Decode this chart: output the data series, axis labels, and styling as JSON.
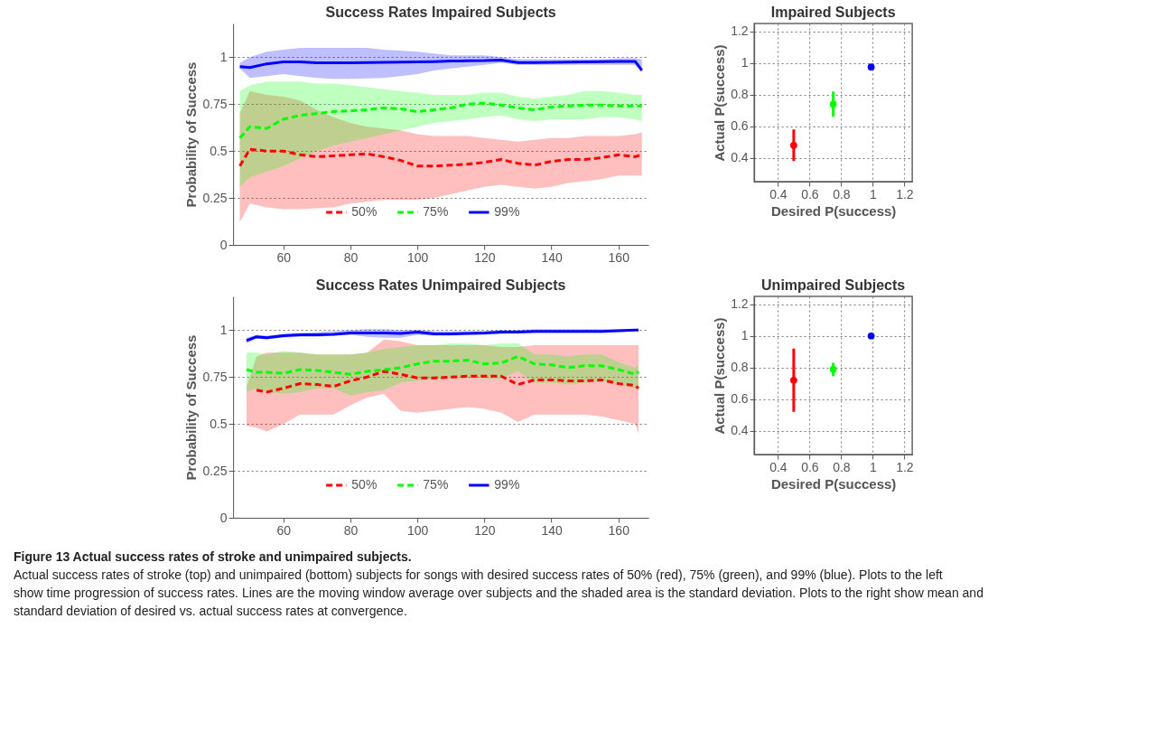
{
  "chart_data": [
    {
      "type": "line",
      "title": "Success Rates Impaired Subjects",
      "ylabel": "Probability of Success",
      "xlim": [
        45,
        169
      ],
      "ylim": [
        0,
        1.18
      ],
      "xticks": [
        60,
        80,
        100,
        120,
        140,
        160
      ],
      "yticks": [
        0,
        0.25,
        0.5,
        0.75,
        1
      ],
      "grid": "y",
      "legend": "bottom",
      "x": [
        47,
        50,
        55,
        60,
        65,
        70,
        75,
        80,
        85,
        90,
        95,
        100,
        105,
        110,
        115,
        120,
        125,
        130,
        135,
        140,
        145,
        150,
        155,
        160,
        165,
        167
      ],
      "series": [
        {
          "name": "50%",
          "color": "#ff0000",
          "line_style": "dashed",
          "values": [
            0.42,
            0.51,
            0.5,
            0.5,
            0.48,
            0.47,
            0.475,
            0.48,
            0.485,
            0.47,
            0.45,
            0.42,
            0.42,
            0.425,
            0.43,
            0.44,
            0.455,
            0.435,
            0.425,
            0.445,
            0.455,
            0.455,
            0.465,
            0.48,
            0.47,
            0.48
          ],
          "lower": [
            0.12,
            0.22,
            0.2,
            0.19,
            0.19,
            0.195,
            0.2,
            0.22,
            0.23,
            0.24,
            0.24,
            0.24,
            0.25,
            0.27,
            0.29,
            0.31,
            0.32,
            0.31,
            0.3,
            0.31,
            0.33,
            0.34,
            0.35,
            0.37,
            0.37,
            0.37
          ],
          "upper": [
            0.7,
            0.82,
            0.8,
            0.79,
            0.77,
            0.72,
            0.68,
            0.65,
            0.63,
            0.62,
            0.61,
            0.59,
            0.58,
            0.58,
            0.58,
            0.57,
            0.56,
            0.55,
            0.56,
            0.57,
            0.57,
            0.58,
            0.58,
            0.58,
            0.59,
            0.6
          ]
        },
        {
          "name": "75%",
          "color": "#00ff00",
          "line_style": "dashed",
          "values": [
            0.57,
            0.63,
            0.62,
            0.67,
            0.69,
            0.7,
            0.71,
            0.715,
            0.72,
            0.73,
            0.725,
            0.71,
            0.72,
            0.73,
            0.75,
            0.755,
            0.745,
            0.73,
            0.72,
            0.735,
            0.74,
            0.745,
            0.745,
            0.74,
            0.74,
            0.74
          ],
          "lower": [
            0.31,
            0.36,
            0.39,
            0.42,
            0.46,
            0.5,
            0.53,
            0.55,
            0.57,
            0.59,
            0.61,
            0.63,
            0.65,
            0.66,
            0.67,
            0.68,
            0.69,
            0.67,
            0.66,
            0.67,
            0.67,
            0.67,
            0.68,
            0.68,
            0.67,
            0.66
          ],
          "upper": [
            0.82,
            0.85,
            0.87,
            0.87,
            0.87,
            0.86,
            0.86,
            0.85,
            0.84,
            0.83,
            0.82,
            0.81,
            0.8,
            0.8,
            0.8,
            0.81,
            0.81,
            0.79,
            0.78,
            0.79,
            0.8,
            0.82,
            0.82,
            0.81,
            0.8,
            0.8
          ]
        },
        {
          "name": "99%",
          "color": "#0000ff",
          "line_style": "solid",
          "values": [
            0.95,
            0.945,
            0.965,
            0.975,
            0.975,
            0.97,
            0.97,
            0.97,
            0.972,
            0.973,
            0.974,
            0.975,
            0.977,
            0.98,
            0.981,
            0.982,
            0.985,
            0.972,
            0.972,
            0.973,
            0.974,
            0.975,
            0.976,
            0.978,
            0.978,
            0.93
          ],
          "lower": [
            0.94,
            0.89,
            0.9,
            0.91,
            0.9,
            0.89,
            0.885,
            0.885,
            0.887,
            0.89,
            0.9,
            0.91,
            0.93,
            0.94,
            0.95,
            0.96,
            0.97,
            0.96,
            0.96,
            0.96,
            0.96,
            0.96,
            0.96,
            0.96,
            0.96,
            0.92
          ],
          "upper": [
            0.97,
            1.0,
            1.03,
            1.04,
            1.05,
            1.05,
            1.05,
            1.05,
            1.05,
            1.04,
            1.035,
            1.03,
            1.02,
            1.01,
            1.01,
            1.01,
            1.0,
            0.99,
            0.99,
            0.99,
            0.99,
            0.99,
            0.99,
            0.995,
            0.995,
            0.99
          ]
        }
      ]
    },
    {
      "type": "scatter",
      "title": "Impaired Subjects",
      "xlabel": "Desired P(success)",
      "ylabel": "Actual P(success)",
      "xlim": [
        0.25,
        1.25
      ],
      "ylim": [
        0.25,
        1.25
      ],
      "xticks": [
        0.4,
        0.6,
        0.8,
        1,
        1.2
      ],
      "yticks": [
        0.4,
        0.6,
        0.8,
        1,
        1.2
      ],
      "grid": true,
      "marker": "circle",
      "series": [
        {
          "color": "#ff0000",
          "x": [
            0.5
          ],
          "values": [
            0.48
          ],
          "errors": [
            [
              0.38,
              0.58
            ]
          ]
        },
        {
          "color": "#00ff00",
          "x": [
            0.75
          ],
          "values": [
            0.74
          ],
          "errors": [
            [
              0.66,
              0.82
            ]
          ]
        },
        {
          "color": "#0000ff",
          "x": [
            0.99
          ],
          "values": [
            0.975
          ],
          "errors": [
            [
              0.96,
              0.99
            ]
          ]
        }
      ]
    },
    {
      "type": "line",
      "title": "Success Rates Unimpaired Subjects",
      "ylabel": "Probability of Success",
      "xlim": [
        45,
        169
      ],
      "ylim": [
        0,
        1.18
      ],
      "xticks": [
        60,
        80,
        100,
        120,
        140,
        160
      ],
      "yticks": [
        0,
        0.25,
        0.5,
        0.75,
        1
      ],
      "grid": "y",
      "legend": "bottom",
      "x": [
        49,
        52,
        55,
        60,
        65,
        70,
        75,
        80,
        85,
        90,
        95,
        100,
        105,
        110,
        115,
        120,
        125,
        130,
        135,
        140,
        145,
        150,
        155,
        160,
        165,
        166
      ],
      "series": [
        {
          "name": "50%",
          "color": "#ff0000",
          "line_style": "dashed",
          "values": [
            null,
            0.68,
            0.67,
            0.69,
            0.715,
            0.71,
            0.7,
            0.73,
            0.75,
            0.78,
            0.765,
            0.745,
            0.745,
            0.75,
            0.755,
            0.755,
            0.755,
            0.71,
            0.735,
            0.735,
            0.73,
            0.73,
            0.735,
            0.715,
            0.705,
            0.69
          ],
          "lower": [
            0.49,
            0.48,
            0.46,
            0.5,
            0.55,
            0.55,
            0.55,
            0.6,
            0.64,
            0.66,
            0.57,
            0.56,
            0.57,
            0.58,
            0.59,
            0.58,
            0.56,
            0.51,
            0.55,
            0.55,
            0.55,
            0.55,
            0.54,
            0.52,
            0.5,
            0.45
          ],
          "upper": [
            0.7,
            0.86,
            0.88,
            0.88,
            0.88,
            0.87,
            0.87,
            0.87,
            0.88,
            0.95,
            0.94,
            0.92,
            0.92,
            0.92,
            0.92,
            0.92,
            0.91,
            0.91,
            0.92,
            0.92,
            0.92,
            0.92,
            0.92,
            0.92,
            0.92,
            0.92
          ]
        },
        {
          "name": "75%",
          "color": "#00ff00",
          "line_style": "dashed",
          "values": [
            0.79,
            0.775,
            0.775,
            0.77,
            0.79,
            0.785,
            0.775,
            0.765,
            0.78,
            0.79,
            0.8,
            0.82,
            0.835,
            0.835,
            0.84,
            0.82,
            0.825,
            0.86,
            0.82,
            0.815,
            0.8,
            0.81,
            0.81,
            0.79,
            0.765,
            0.78
          ],
          "lower": [
            0.67,
            0.69,
            0.67,
            0.66,
            0.67,
            0.69,
            0.69,
            0.65,
            0.67,
            0.68,
            0.72,
            0.73,
            0.74,
            0.74,
            0.75,
            0.74,
            0.74,
            0.78,
            0.72,
            0.72,
            0.71,
            0.72,
            0.73,
            0.71,
            0.69,
            0.69
          ],
          "upper": [
            0.88,
            0.88,
            0.87,
            0.89,
            0.88,
            0.87,
            0.87,
            0.87,
            0.88,
            0.9,
            0.91,
            0.92,
            0.92,
            0.93,
            0.93,
            0.92,
            0.93,
            0.93,
            0.87,
            0.87,
            0.86,
            0.87,
            0.87,
            0.83,
            0.8,
            0.82
          ]
        },
        {
          "name": "99%",
          "color": "#0000ff",
          "line_style": "solid",
          "values": [
            0.945,
            0.965,
            0.96,
            0.97,
            0.975,
            0.975,
            0.978,
            0.985,
            0.985,
            0.985,
            0.982,
            0.99,
            0.98,
            0.98,
            0.983,
            0.985,
            0.99,
            0.99,
            0.993,
            0.993,
            0.993,
            0.993,
            0.993,
            0.997,
            1.0,
            1.0
          ],
          "lower": [
            0.93,
            0.955,
            0.95,
            0.96,
            0.965,
            0.965,
            0.97,
            0.975,
            0.965,
            0.96,
            0.96,
            0.975,
            0.97,
            0.97,
            0.975,
            0.975,
            0.98,
            0.985,
            0.985,
            0.985,
            0.985,
            0.985,
            0.985,
            0.99,
            0.995,
            0.995
          ],
          "upper": [
            0.96,
            0.975,
            0.97,
            0.98,
            0.985,
            0.99,
            0.995,
            1.0,
            1.005,
            1.005,
            1.0,
            1.0,
            0.995,
            0.995,
            0.995,
            0.995,
            1.0,
            1.0,
            1.005,
            1.005,
            1.005,
            1.005,
            1.005,
            1.005,
            1.005,
            1.005
          ]
        }
      ]
    },
    {
      "type": "scatter",
      "title": "Unimpaired Subjects",
      "xlabel": "Desired P(success)",
      "ylabel": "Actual P(success)",
      "xlim": [
        0.25,
        1.25
      ],
      "ylim": [
        0.25,
        1.25
      ],
      "xticks": [
        0.4,
        0.6,
        0.8,
        1,
        1.2
      ],
      "yticks": [
        0.4,
        0.6,
        0.8,
        1,
        1.2
      ],
      "grid": true,
      "marker": "circle",
      "series": [
        {
          "color": "#ff0000",
          "x": [
            0.5
          ],
          "values": [
            0.72
          ],
          "errors": [
            [
              0.52,
              0.92
            ]
          ]
        },
        {
          "color": "#00ff00",
          "x": [
            0.75
          ],
          "values": [
            0.79
          ],
          "errors": [
            [
              0.745,
              0.83
            ]
          ]
        },
        {
          "color": "#0000ff",
          "x": [
            0.99
          ],
          "values": [
            1.0
          ],
          "errors": [
            [
              0.99,
              1.01
            ]
          ]
        }
      ],
      "annotations": [
        "Figure 13 Actual success rates of stroke and unimpaired subjects.",
        "Actual success rates of stroke (top) and unimpaired (bottom) subjects for songs with desired success rates of 50% (red), 75% (green), and 99% (blue). Plots to the left show time progression of success rates. Lines are the moving window average over subjects and the shaded area is the standard deviation. Plots to the right show mean and standard deviation of desired vs. actual success rates at convergence."
      ]
    }
  ]
}
